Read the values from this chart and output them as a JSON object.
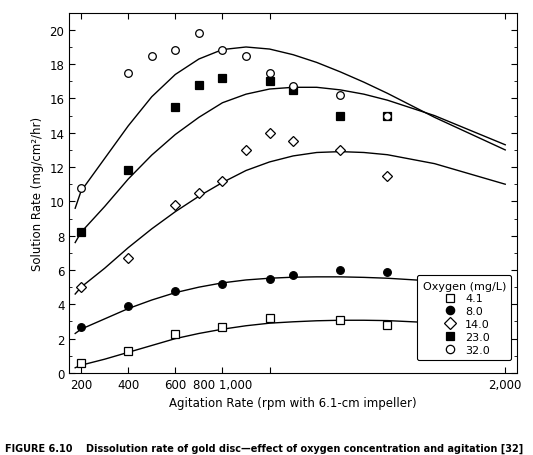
{
  "title": "",
  "xlabel": "Agitation Rate (rpm with 6.1-cm impeller)",
  "ylabel": "Solution Rate (mg/cm²/hr)",
  "xlim": [
    150,
    2050
  ],
  "ylim": [
    0,
    21
  ],
  "yticks": [
    0,
    2,
    4,
    6,
    8,
    10,
    12,
    14,
    16,
    18,
    20
  ],
  "xticks": [
    200,
    400,
    600,
    800,
    1000,
    2000
  ],
  "xticklabels": [
    "200",
    "400",
    "600",
    "800 1,000",
    "",
    "2,000"
  ],
  "caption": "FIGURE 6.10    Dissolution rate of gold disc—effect of oxygen concentration and agitation [32]",
  "series": [
    {
      "label": "4.1",
      "oxygen": 4.1,
      "marker": "s",
      "fillstyle": "none",
      "data_x": [
        200,
        400,
        600,
        800,
        1000,
        1300,
        1500
      ],
      "data_y": [
        0.55,
        1.3,
        2.25,
        2.7,
        3.2,
        3.1,
        2.8
      ],
      "curve_x": [
        175,
        200,
        300,
        400,
        500,
        600,
        700,
        800,
        900,
        1000,
        1100,
        1200,
        1300,
        1400,
        1500,
        1700,
        2000
      ],
      "curve_y": [
        0.3,
        0.45,
        0.8,
        1.2,
        1.6,
        2.0,
        2.3,
        2.55,
        2.75,
        2.9,
        2.98,
        3.04,
        3.07,
        3.07,
        3.05,
        2.92,
        2.65
      ]
    },
    {
      "label": "8.0",
      "oxygen": 8.0,
      "marker": "o",
      "fillstyle": "full",
      "data_x": [
        200,
        400,
        600,
        800,
        1000,
        1100,
        1300,
        1500
      ],
      "data_y": [
        2.7,
        3.9,
        4.8,
        5.2,
        5.5,
        5.7,
        6.0,
        5.9
      ],
      "curve_x": [
        175,
        200,
        300,
        400,
        500,
        600,
        700,
        800,
        900,
        1000,
        1100,
        1200,
        1300,
        1400,
        1500,
        1700,
        2000
      ],
      "curve_y": [
        2.3,
        2.55,
        3.15,
        3.75,
        4.25,
        4.68,
        5.0,
        5.25,
        5.42,
        5.52,
        5.58,
        5.6,
        5.6,
        5.57,
        5.52,
        5.35,
        5.0
      ]
    },
    {
      "label": "14.0",
      "oxygen": 14.0,
      "marker": "D",
      "fillstyle": "none",
      "data_x": [
        200,
        400,
        600,
        700,
        800,
        900,
        1000,
        1100,
        1300,
        1500
      ],
      "data_y": [
        5.0,
        6.7,
        9.8,
        10.5,
        11.2,
        13.0,
        14.0,
        13.5,
        13.0,
        11.5
      ],
      "curve_x": [
        175,
        200,
        300,
        400,
        500,
        600,
        700,
        800,
        900,
        1000,
        1100,
        1200,
        1300,
        1400,
        1500,
        1700,
        2000
      ],
      "curve_y": [
        4.6,
        5.0,
        6.1,
        7.3,
        8.4,
        9.4,
        10.3,
        11.1,
        11.8,
        12.3,
        12.65,
        12.85,
        12.9,
        12.85,
        12.72,
        12.2,
        11.0
      ]
    },
    {
      "label": "23.0",
      "oxygen": 23.0,
      "marker": "s",
      "fillstyle": "full",
      "data_x": [
        200,
        400,
        600,
        700,
        800,
        1000,
        1100,
        1300,
        1500
      ],
      "data_y": [
        8.2,
        11.8,
        15.5,
        16.8,
        17.2,
        17.0,
        16.5,
        15.0,
        15.0
      ],
      "curve_x": [
        175,
        200,
        300,
        400,
        500,
        600,
        700,
        800,
        900,
        1000,
        1100,
        1200,
        1300,
        1400,
        1500,
        1700,
        2000
      ],
      "curve_y": [
        7.6,
        8.2,
        9.7,
        11.3,
        12.7,
        13.9,
        14.9,
        15.75,
        16.25,
        16.55,
        16.65,
        16.65,
        16.5,
        16.25,
        15.9,
        15.0,
        13.3
      ]
    },
    {
      "label": "32.0",
      "oxygen": 32.0,
      "marker": "o",
      "fillstyle": "none",
      "data_x": [
        200,
        400,
        500,
        600,
        700,
        800,
        900,
        1000,
        1100,
        1300,
        1500
      ],
      "data_y": [
        10.8,
        17.5,
        18.5,
        18.8,
        19.8,
        18.8,
        18.5,
        17.5,
        16.7,
        16.2,
        15.0
      ],
      "curve_x": [
        175,
        200,
        300,
        400,
        500,
        600,
        700,
        800,
        900,
        1000,
        1100,
        1200,
        1300,
        1400,
        1500,
        1700,
        2000
      ],
      "curve_y": [
        9.6,
        10.6,
        12.5,
        14.4,
        16.1,
        17.4,
        18.3,
        18.85,
        19.0,
        18.88,
        18.55,
        18.1,
        17.55,
        16.95,
        16.3,
        14.9,
        13.0
      ]
    }
  ],
  "legend_title": "Oxygen (mg/L)",
  "background_color": "#ffffff"
}
